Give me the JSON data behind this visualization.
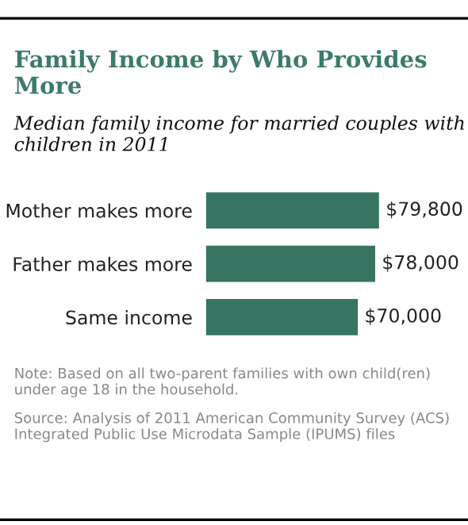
{
  "chart_data": {
    "type": "bar",
    "orientation": "horizontal",
    "title": "Family Income by Who Provides More",
    "subtitle": "Median family income for married couples with children in 2011",
    "categories": [
      "Mother makes more",
      "Father makes more",
      "Same income"
    ],
    "values": [
      79800,
      78000,
      70000
    ],
    "value_labels": [
      "$79,800",
      "$78,000",
      "$70,000"
    ],
    "color": "#377562",
    "annotations": [
      "Note: Based on all two-parent families with own child(ren) under age 18 in the household.",
      "Source: Analysis of 2011 American Community Survey (ACS) Integrated Public Use Microdata Sample (IPUMS) files"
    ],
    "grid": false,
    "legend": false
  }
}
